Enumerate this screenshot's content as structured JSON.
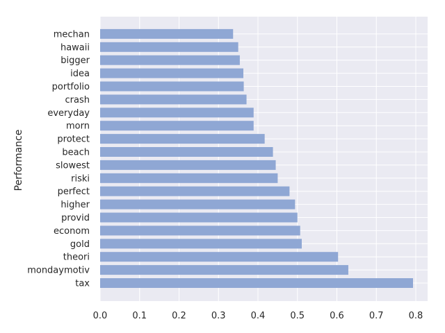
{
  "chart_data": {
    "type": "bar",
    "orientation": "horizontal",
    "categories": [
      "tax",
      "mondaymotiv",
      "theori",
      "gold",
      "econom",
      "provid",
      "higher",
      "perfect",
      "riski",
      "slowest",
      "beach",
      "protect",
      "morn",
      "everyday",
      "crash",
      "portfolio",
      "idea",
      "bigger",
      "hawaii",
      "mechan"
    ],
    "values": [
      0.793,
      0.629,
      0.603,
      0.511,
      0.507,
      0.5,
      0.494,
      0.48,
      0.45,
      0.445,
      0.438,
      0.417,
      0.389,
      0.389,
      0.371,
      0.364,
      0.363,
      0.354,
      0.35,
      0.337
    ],
    "title": "",
    "xlabel": "",
    "ylabel": "Performance",
    "xlim": [
      0,
      0.83
    ],
    "xticks": [
      "0.0",
      "0.1",
      "0.2",
      "0.3",
      "0.4",
      "0.5",
      "0.6",
      "0.7",
      "0.8"
    ],
    "grid": true,
    "bar_color": "#8fa7d4",
    "background_color": "#eaeaf2",
    "grid_color": "#ffffff"
  }
}
